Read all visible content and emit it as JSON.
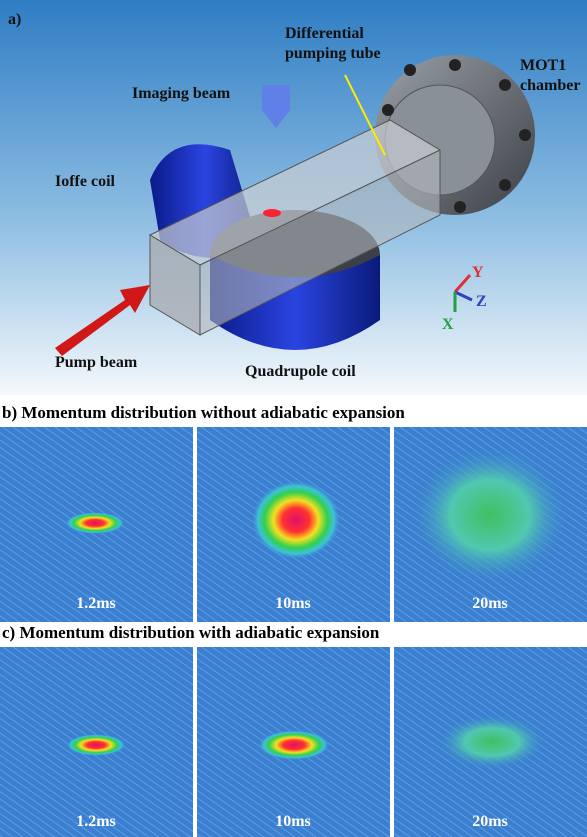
{
  "panel_a": {
    "label": "a)",
    "differential_tube": "Differential",
    "differential_tube_2": "pumping tube",
    "mot_chamber": "MOT1",
    "mot_chamber_2": "chamber",
    "imaging_beam": "Imaging  beam",
    "ioffe_coil": "Ioffe coil",
    "pump_beam": "Pump beam",
    "quadrupole_coil": "Quadrupole coil",
    "axes": {
      "y": "Y",
      "z": "Z",
      "x": "X"
    }
  },
  "panel_b": {
    "title": "b) Momentum distribution without adiabatic expansion",
    "images": [
      {
        "time": "1.2ms"
      },
      {
        "time": "10ms"
      },
      {
        "time": "20ms"
      }
    ]
  },
  "panel_c": {
    "title": "c) Momentum distribution with adiabatic expansion",
    "images": [
      {
        "time": "1.2ms"
      },
      {
        "time": "10ms"
      },
      {
        "time": "20ms"
      }
    ]
  }
}
